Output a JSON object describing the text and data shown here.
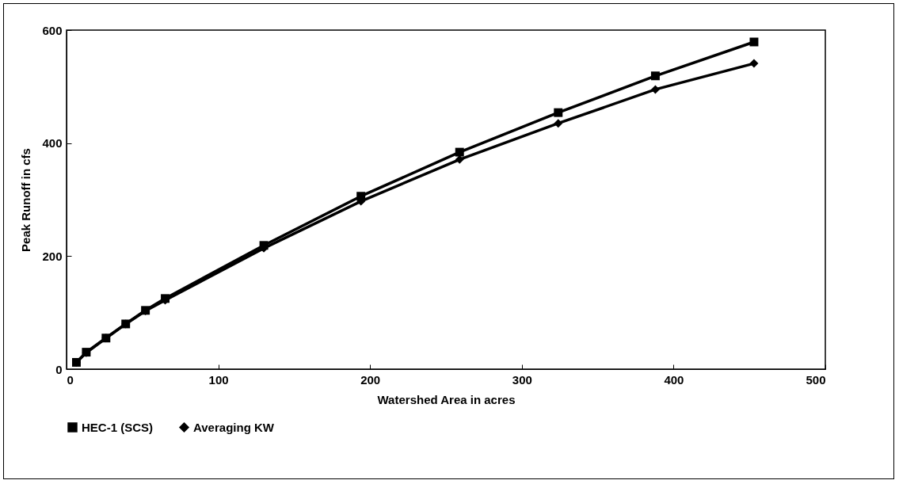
{
  "chart_data": {
    "type": "line",
    "xlabel": "Watershed Area in acres",
    "ylabel": "Peak Runoff in cfs",
    "xlim": [
      0,
      500
    ],
    "xticks": [
      0,
      100,
      200,
      300,
      400,
      500
    ],
    "ylim": [
      0,
      600
    ],
    "yticks": [
      0,
      200,
      400,
      600
    ],
    "x": [
      6.5,
      13,
      26,
      39,
      52,
      65,
      130,
      194,
      259,
      324,
      388,
      453
    ],
    "series": [
      {
        "name": "HEC-1 (SCS)",
        "color": "#000000",
        "marker": "square",
        "values": [
          12,
          30,
          55,
          80,
          104,
          125,
          219,
          306,
          384,
          454,
          519,
          579
        ]
      },
      {
        "name": "Averaging KW",
        "color": "#000000",
        "marker": "diamond",
        "values": [
          12,
          29,
          55,
          80,
          103,
          122,
          214,
          297,
          371,
          435,
          495,
          541
        ]
      }
    ],
    "grid": false,
    "legend": "bottom",
    "line_style": "solid"
  }
}
